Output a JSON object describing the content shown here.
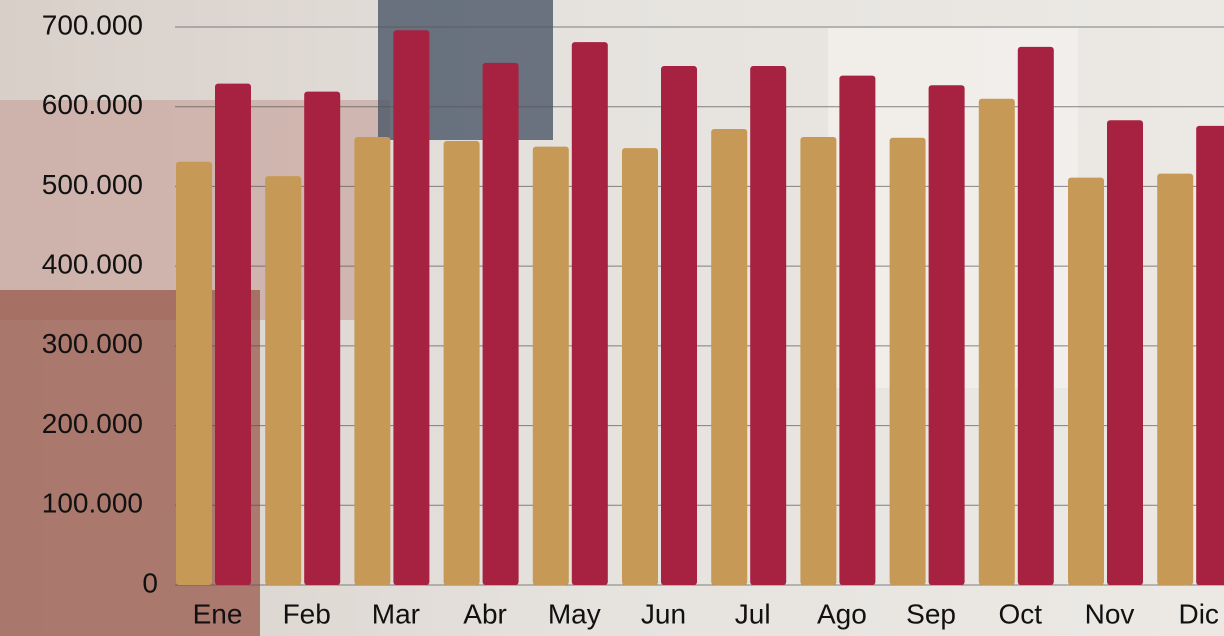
{
  "chart_data": {
    "type": "bar",
    "categories": [
      "Ene",
      "Feb",
      "Mar",
      "Abr",
      "May",
      "Jun",
      "Jul",
      "Ago",
      "Sep",
      "Oct",
      "Nov",
      "Dic"
    ],
    "series": [
      {
        "color": "#c69a56",
        "values": [
          531000,
          513000,
          562000,
          557000,
          550000,
          548000,
          572000,
          562000,
          561000,
          610000,
          511000,
          516000
        ]
      },
      {
        "color": "#a72140",
        "values": [
          629000,
          619000,
          696000,
          655000,
          681000,
          651000,
          651000,
          639000,
          627000,
          675000,
          583000,
          576000
        ]
      }
    ],
    "ylim": [
      0,
      700000
    ],
    "yticks": [
      0,
      {
        "value": 100000,
        "label": "100.000"
      },
      {
        "value": 200000,
        "label": "200.000"
      },
      {
        "value": 300000,
        "label": "300.000"
      },
      {
        "value": 400000,
        "label": "400.000"
      },
      {
        "value": 500000,
        "label": "500.000"
      },
      {
        "value": 600000,
        "label": "600.000"
      },
      {
        "value": 700000,
        "label": "700.000"
      }
    ],
    "grid": true
  }
}
